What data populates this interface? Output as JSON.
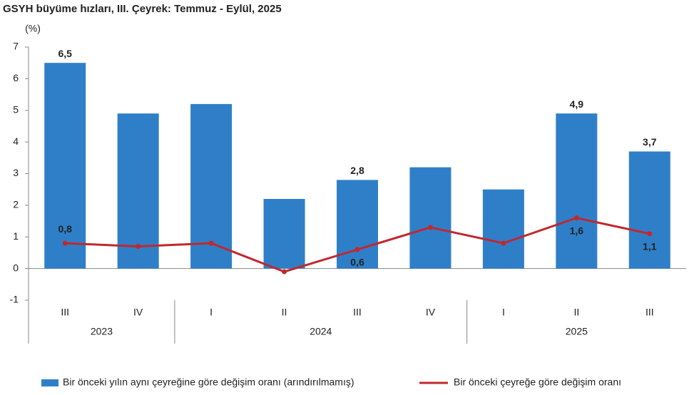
{
  "chart_data": {
    "type": "bar-line",
    "title": "GSYH büyüme hızları, III. Çeyrek: Temmuz - Eylül, 2025",
    "y_label": "(%)",
    "categories": [
      "III",
      "IV",
      "I",
      "II",
      "III",
      "IV",
      "I",
      "II",
      "III"
    ],
    "category_groups": [
      "2023",
      "2023",
      "2024",
      "2024",
      "2024",
      "2024",
      "2025",
      "2025",
      "2025"
    ],
    "ylim": [
      -1,
      7
    ],
    "yticks": [
      -1,
      0,
      1,
      2,
      3,
      4,
      5,
      6,
      7
    ],
    "series": [
      {
        "name": "Bir önceki yılın aynı çeyreğine göre değişim oranı (arındırılmamış)",
        "type": "bar",
        "color": "#2f7fc8",
        "values": [
          6.5,
          4.9,
          5.2,
          2.2,
          2.8,
          3.2,
          2.5,
          4.9,
          3.7
        ],
        "value_labels": [
          "6,5",
          null,
          null,
          null,
          "2,8",
          null,
          null,
          "4,9",
          "3,7"
        ]
      },
      {
        "name": "Bir önceki çeyreğe göre değişim oranı",
        "type": "line",
        "color": "#c0282e",
        "values": [
          0.8,
          0.7,
          0.8,
          -0.1,
          0.6,
          1.3,
          0.8,
          1.6,
          1.1
        ],
        "value_labels": [
          "0,8",
          null,
          null,
          null,
          "0,6",
          null,
          null,
          "1,6",
          "1,1"
        ]
      }
    ],
    "legend": "bottom"
  }
}
